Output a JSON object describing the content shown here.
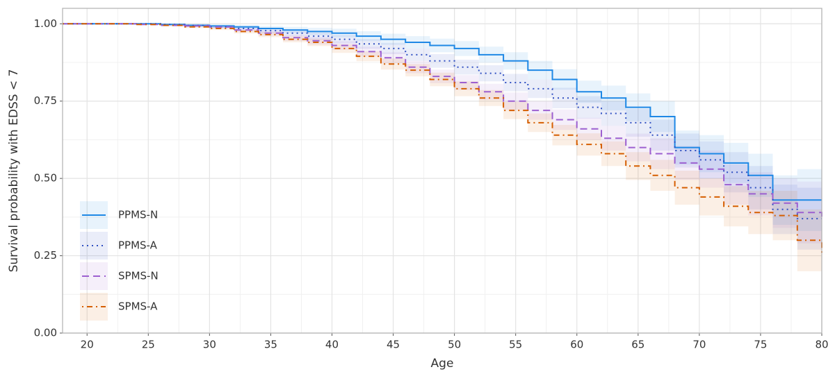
{
  "chart_data": {
    "type": "line",
    "step": true,
    "x_label": "Age",
    "y_label": "Survival probability with EDSS < 7",
    "xlim": [
      18,
      80
    ],
    "ylim": [
      0,
      1.05
    ],
    "xticks": [
      20,
      25,
      30,
      35,
      40,
      45,
      50,
      55,
      60,
      65,
      70,
      75,
      80
    ],
    "yticks": [
      {
        "value": 0,
        "label": "0.00"
      },
      {
        "value": 0.25,
        "label": "0.25"
      },
      {
        "value": 0.5,
        "label": "0.50"
      },
      {
        "value": 0.75,
        "label": "0.75"
      },
      {
        "value": 1,
        "label": "1.00"
      }
    ],
    "grid": true,
    "legend": "bottom-left",
    "x": [
      18,
      20,
      22,
      24,
      26,
      28,
      30,
      32,
      34,
      36,
      38,
      40,
      42,
      44,
      46,
      48,
      50,
      52,
      54,
      56,
      58,
      60,
      62,
      64,
      66,
      68,
      70,
      72,
      74,
      76,
      78,
      80
    ],
    "series": [
      {
        "name": "PPMS-N",
        "color": "#1e88e5",
        "dash": "solid",
        "values": [
          1,
          1,
          1,
          1,
          0.998,
          0.995,
          0.993,
          0.99,
          0.985,
          0.98,
          0.975,
          0.97,
          0.96,
          0.95,
          0.94,
          0.93,
          0.92,
          0.9,
          0.88,
          0.85,
          0.82,
          0.78,
          0.76,
          0.73,
          0.7,
          0.6,
          0.58,
          0.55,
          0.51,
          0.43,
          0.43,
          0.43
        ],
        "lower": [
          1,
          1,
          1,
          0.998,
          0.995,
          0.991,
          0.988,
          0.984,
          0.977,
          0.97,
          0.963,
          0.956,
          0.944,
          0.932,
          0.92,
          0.908,
          0.896,
          0.874,
          0.852,
          0.82,
          0.787,
          0.744,
          0.72,
          0.685,
          0.65,
          0.545,
          0.52,
          0.485,
          0.44,
          0.35,
          0.33,
          0.31
        ],
        "upper": [
          1,
          1,
          1,
          1,
          1,
          0.999,
          0.998,
          0.996,
          0.993,
          0.99,
          0.987,
          0.984,
          0.976,
          0.968,
          0.96,
          0.952,
          0.944,
          0.926,
          0.908,
          0.88,
          0.853,
          0.816,
          0.8,
          0.775,
          0.75,
          0.655,
          0.64,
          0.615,
          0.58,
          0.51,
          0.53,
          0.55
        ]
      },
      {
        "name": "PPMS-A",
        "color": "#2f4fc2",
        "dash": "dotted",
        "values": [
          1,
          1,
          1,
          1,
          0.998,
          0.995,
          0.99,
          0.985,
          0.978,
          0.97,
          0.96,
          0.95,
          0.935,
          0.92,
          0.9,
          0.88,
          0.86,
          0.84,
          0.81,
          0.79,
          0.76,
          0.73,
          0.71,
          0.68,
          0.64,
          0.59,
          0.56,
          0.52,
          0.47,
          0.4,
          0.37,
          0.37
        ],
        "lower": [
          1,
          1,
          1,
          0.998,
          0.995,
          0.991,
          0.985,
          0.979,
          0.97,
          0.96,
          0.948,
          0.936,
          0.919,
          0.902,
          0.88,
          0.858,
          0.836,
          0.814,
          0.782,
          0.76,
          0.727,
          0.694,
          0.67,
          0.635,
          0.59,
          0.535,
          0.5,
          0.455,
          0.4,
          0.32,
          0.27,
          0.25
        ],
        "upper": [
          1,
          1,
          1,
          1,
          1,
          0.999,
          0.995,
          0.991,
          0.986,
          0.98,
          0.972,
          0.964,
          0.951,
          0.938,
          0.92,
          0.902,
          0.884,
          0.866,
          0.838,
          0.82,
          0.793,
          0.766,
          0.75,
          0.725,
          0.69,
          0.645,
          0.62,
          0.585,
          0.54,
          0.48,
          0.47,
          0.49
        ]
      },
      {
        "name": "SPMS-N",
        "color": "#9c5fd0",
        "dash": "dashed",
        "values": [
          1,
          1,
          1,
          0.998,
          0.995,
          0.993,
          0.99,
          0.98,
          0.97,
          0.955,
          0.945,
          0.93,
          0.91,
          0.89,
          0.86,
          0.83,
          0.81,
          0.78,
          0.75,
          0.72,
          0.69,
          0.66,
          0.63,
          0.6,
          0.58,
          0.55,
          0.53,
          0.48,
          0.45,
          0.42,
          0.39,
          0.37
        ],
        "lower": [
          1,
          1,
          1,
          0.996,
          0.992,
          0.989,
          0.985,
          0.974,
          0.962,
          0.945,
          0.933,
          0.916,
          0.894,
          0.872,
          0.84,
          0.808,
          0.786,
          0.754,
          0.722,
          0.69,
          0.657,
          0.624,
          0.59,
          0.555,
          0.53,
          0.495,
          0.47,
          0.415,
          0.38,
          0.34,
          0.29,
          0.25
        ],
        "upper": [
          1,
          1,
          1,
          1,
          0.998,
          0.997,
          0.995,
          0.986,
          0.978,
          0.965,
          0.957,
          0.944,
          0.926,
          0.908,
          0.88,
          0.852,
          0.834,
          0.806,
          0.778,
          0.75,
          0.723,
          0.696,
          0.67,
          0.645,
          0.63,
          0.605,
          0.59,
          0.545,
          0.52,
          0.5,
          0.49,
          0.49
        ]
      },
      {
        "name": "SPMS-A",
        "color": "#d55e00",
        "dash": "dotdash",
        "values": [
          1,
          1,
          1,
          0.998,
          0.995,
          0.99,
          0.985,
          0.975,
          0.965,
          0.95,
          0.94,
          0.92,
          0.895,
          0.87,
          0.85,
          0.82,
          0.79,
          0.76,
          0.72,
          0.68,
          0.64,
          0.61,
          0.58,
          0.54,
          0.51,
          0.47,
          0.44,
          0.41,
          0.39,
          0.38,
          0.3,
          0.26
        ],
        "lower": [
          1,
          1,
          1,
          0.996,
          0.992,
          0.986,
          0.98,
          0.969,
          0.957,
          0.94,
          0.928,
          0.906,
          0.879,
          0.852,
          0.83,
          0.798,
          0.766,
          0.734,
          0.692,
          0.65,
          0.607,
          0.574,
          0.54,
          0.495,
          0.46,
          0.415,
          0.38,
          0.345,
          0.32,
          0.3,
          0.2,
          0.14
        ],
        "upper": [
          1,
          1,
          1,
          1,
          0.998,
          0.994,
          0.99,
          0.981,
          0.973,
          0.96,
          0.952,
          0.934,
          0.911,
          0.888,
          0.87,
          0.842,
          0.814,
          0.786,
          0.748,
          0.71,
          0.673,
          0.646,
          0.62,
          0.585,
          0.56,
          0.525,
          0.5,
          0.475,
          0.46,
          0.46,
          0.4,
          0.38
        ]
      }
    ]
  }
}
